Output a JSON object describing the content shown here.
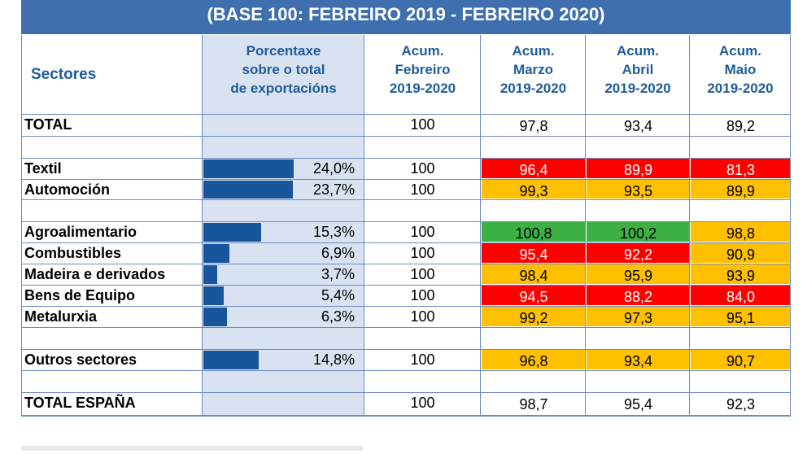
{
  "banner": "(BASE 100: FEBREIRO 2019 - FEBREIRO 2020)",
  "headers": {
    "sector": "Sectores",
    "share": [
      "Porcentaxe",
      "sobre o total",
      "de  exportacións"
    ],
    "feb": [
      "Acum.",
      "Febreiro",
      "2019-2020"
    ],
    "mar": [
      "Acum.",
      "Marzo",
      "2019-2020"
    ],
    "apr": [
      "Acum.",
      "Abril",
      "2019-2020"
    ],
    "may": [
      "Acum.",
      "Maio",
      "2019-2020"
    ]
  },
  "colors": {
    "red": "#ff0000",
    "orange": "#ffc000",
    "green": "#3cb043",
    "bar": "#17569c",
    "share_bg": "#d9e2f1"
  },
  "chart_data": {
    "type": "table",
    "columns": [
      "Sectores",
      "Porcentaxe sobre o total de exportacións",
      "Acum. Febreiro 2019-2020",
      "Acum. Marzo 2019-2020",
      "Acum. Abril 2019-2020",
      "Acum. Maio 2019-2020"
    ],
    "rows": [
      {
        "sector": "TOTAL",
        "share": "",
        "share_value": null,
        "feb": "100",
        "mar": "97,8",
        "apr": "93,4",
        "may": "89,2",
        "status": [
          "none",
          "none",
          "none"
        ]
      },
      {
        "spacer": true
      },
      {
        "sector": "Textil",
        "share": "24,0%",
        "share_value": 24.0,
        "feb": "100",
        "mar": "96,4",
        "apr": "89,9",
        "may": "81,3",
        "status": [
          "red",
          "red",
          "red"
        ]
      },
      {
        "sector": "Automoción",
        "share": "23,7%",
        "share_value": 23.7,
        "feb": "100",
        "mar": "99,3",
        "apr": "93,5",
        "may": "89,9",
        "status": [
          "orange",
          "orange",
          "orange"
        ]
      },
      {
        "spacer": true
      },
      {
        "sector": "Agroalimentario",
        "share": "15,3%",
        "share_value": 15.3,
        "feb": "100",
        "mar": "100,8",
        "apr": "100,2",
        "may": "98,8",
        "status": [
          "green",
          "green",
          "orange"
        ]
      },
      {
        "sector": "Combustibles",
        "share": "6,9%",
        "share_value": 6.9,
        "feb": "100",
        "mar": "95,4",
        "apr": "92,2",
        "may": "90,9",
        "status": [
          "red",
          "red",
          "orange"
        ]
      },
      {
        "sector": "Madeira e derivados",
        "share": "3,7%",
        "share_value": 3.7,
        "feb": "100",
        "mar": "98,4",
        "apr": "95,9",
        "may": "93,9",
        "status": [
          "orange",
          "orange",
          "orange"
        ]
      },
      {
        "sector": "Bens de Equipo",
        "share": "5,4%",
        "share_value": 5.4,
        "feb": "100",
        "mar": "94,5",
        "apr": "88,2",
        "may": "84,0",
        "status": [
          "red",
          "red",
          "red"
        ]
      },
      {
        "sector": "Metalurxia",
        "share": "6,3%",
        "share_value": 6.3,
        "feb": "100",
        "mar": "99,2",
        "apr": "97,3",
        "may": "95,1",
        "status": [
          "orange",
          "orange",
          "orange"
        ]
      },
      {
        "spacer": true
      },
      {
        "sector": "Outros sectores",
        "share": "14,8%",
        "share_value": 14.8,
        "feb": "100",
        "mar": "96,8",
        "apr": "93,4",
        "may": "90,7",
        "status": [
          "orange",
          "orange",
          "orange"
        ]
      },
      {
        "spacer": true
      },
      {
        "sector": "TOTAL ESPAÑA",
        "share": "",
        "share_value": null,
        "feb": "100",
        "mar": "98,7",
        "apr": "95,4",
        "may": "92,3",
        "status": [
          "none",
          "none",
          "none"
        ]
      }
    ],
    "share_bar_max": 24.0
  }
}
